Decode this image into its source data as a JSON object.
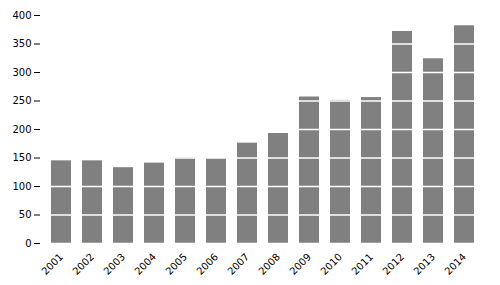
{
  "chart_data": {
    "type": "bar",
    "categories": [
      "2001",
      "2002",
      "2003",
      "2004",
      "2005",
      "2006",
      "2007",
      "2008",
      "2009",
      "2010",
      "2011",
      "2012",
      "2013",
      "2014"
    ],
    "values": [
      145,
      145,
      133,
      141,
      150,
      149,
      176,
      193,
      257,
      251,
      256,
      372,
      324,
      382
    ],
    "color": "#808080",
    "ylim": [
      0,
      400
    ],
    "yticks": [
      0,
      50,
      100,
      150,
      200,
      250,
      300,
      350,
      400
    ],
    "grid": true
  }
}
